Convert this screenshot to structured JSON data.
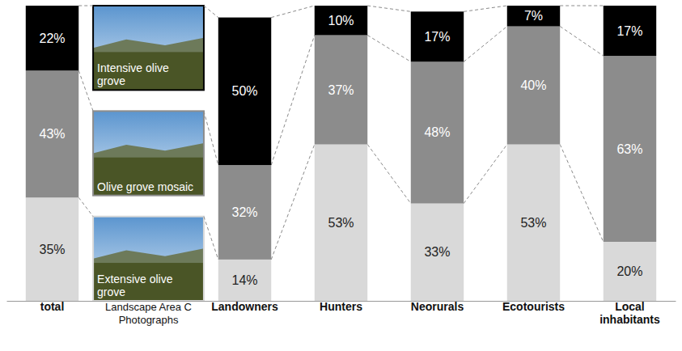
{
  "chart_data": {
    "type": "bar",
    "stacked": true,
    "data_labels": true,
    "tick_labels": "x",
    "categories": [
      "total",
      "Landscape Area C Photographs",
      "Landowners",
      "Hunters",
      "Neorurals",
      "Ecotourists",
      "Local inhabitants"
    ],
    "ylim": [
      0,
      100
    ],
    "series": [
      {
        "name": "Intensive olive grove",
        "color": "#000000",
        "values": [
          22,
          null,
          50,
          10,
          17,
          7,
          17
        ],
        "value_labels": [
          "22%",
          null,
          "50%",
          "10%",
          "17%",
          "7%",
          "17%"
        ]
      },
      {
        "name": "Olive grove mosaic",
        "color": "#8c8c8c",
        "values": [
          43,
          null,
          32,
          37,
          48,
          40,
          63
        ],
        "value_labels": [
          "43%",
          null,
          "32%",
          "37%",
          "48%",
          "40%",
          "63%"
        ]
      },
      {
        "name": "Extensive olive grove",
        "color": "#d9d9d9",
        "values": [
          35,
          null,
          14,
          53,
          33,
          53,
          20
        ],
        "value_labels": [
          "35%",
          null,
          "14%",
          "53%",
          "33%",
          "53%",
          "20%"
        ]
      }
    ]
  }
}
